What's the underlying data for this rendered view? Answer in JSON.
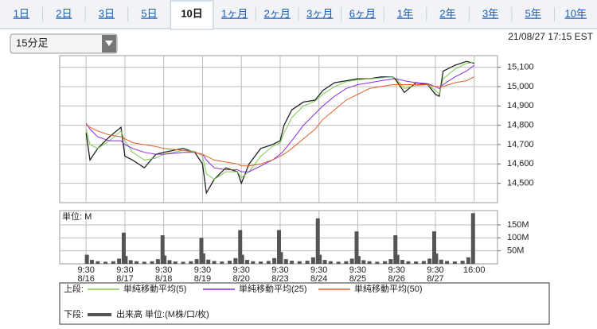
{
  "tabs": [
    "1日",
    "2日",
    "3日",
    "5日",
    "10日",
    "1ヶ月",
    "2ヶ月",
    "3ヶ月",
    "6ヶ月",
    "1年",
    "2年",
    "3年",
    "5年",
    "10年"
  ],
  "selected_tab": 4,
  "dropdown": "15分足",
  "timestamp": "21/08/27 17:15 EST",
  "chart_data": [
    {
      "type": "line",
      "x": [
        0,
        0.1,
        0.3,
        0.6,
        0.9,
        1.0,
        1.2,
        1.5,
        1.8,
        2.0,
        2.5,
        2.8,
        3.0,
        3.1,
        3.3,
        3.6,
        3.9,
        4.0,
        4.2,
        4.5,
        4.8,
        5.0,
        5.1,
        5.3,
        5.6,
        5.9,
        6.1,
        6.4,
        6.7,
        7.0,
        7.3,
        7.6,
        7.9,
        8.0,
        8.2,
        8.5,
        8.8,
        9.0,
        9.1,
        9.2,
        9.5,
        9.8,
        10
      ],
      "xlim": [
        -0.68,
        10.6
      ],
      "ylim": [
        14400,
        15160
      ],
      "yticks": [
        {
          "value": 14500,
          "label": "14,500"
        },
        {
          "value": 14600,
          "label": "14,600"
        },
        {
          "value": 14700,
          "label": "14,700"
        },
        {
          "value": 14800,
          "label": "14,800"
        },
        {
          "value": 14900,
          "label": "14,900"
        },
        {
          "value": 15000,
          "label": "15,000"
        },
        {
          "value": 15100,
          "label": "15,100"
        }
      ],
      "grid": true,
      "series": [
        {
          "color": "#222222",
          "values": [
            14760,
            14620,
            14680,
            14740,
            14790,
            14640,
            14620,
            14580,
            14650,
            14660,
            14680,
            14660,
            14600,
            14450,
            14520,
            14580,
            14560,
            14500,
            14600,
            14680,
            14700,
            14720,
            14800,
            14880,
            14920,
            14930,
            14980,
            15020,
            15030,
            15040,
            15040,
            15050,
            15050,
            15030,
            14970,
            15020,
            15010,
            14960,
            14950,
            15080,
            15110,
            15130,
            15120
          ]
        },
        {
          "name": "単純移動平均(5)",
          "color": "#7ec850",
          "values": [
            14780,
            14700,
            14680,
            14720,
            14770,
            14720,
            14660,
            14620,
            14630,
            14650,
            14670,
            14665,
            14640,
            14550,
            14520,
            14560,
            14560,
            14530,
            14560,
            14640,
            14690,
            14710,
            14760,
            14840,
            14900,
            14925,
            14960,
            15000,
            15025,
            15035,
            15040,
            15045,
            15050,
            15040,
            14990,
            15005,
            15010,
            14980,
            14960,
            15040,
            15090,
            15120,
            15125
          ]
        },
        {
          "name": "単純移動平均(25)",
          "color": "#8a2be2",
          "values": [
            14810,
            14780,
            14740,
            14720,
            14720,
            14700,
            14680,
            14660,
            14650,
            14650,
            14660,
            14660,
            14650,
            14620,
            14580,
            14570,
            14570,
            14560,
            14560,
            14590,
            14620,
            14650,
            14670,
            14720,
            14800,
            14860,
            14900,
            14950,
            14990,
            15010,
            15020,
            15030,
            15040,
            15040,
            15030,
            15020,
            15015,
            15000,
            14990,
            15010,
            15050,
            15080,
            15110
          ]
        },
        {
          "name": "単純移動平均(50)",
          "color": "#e0602a",
          "values": [
            14800,
            14790,
            14770,
            14750,
            14740,
            14730,
            14710,
            14700,
            14690,
            14680,
            14670,
            14660,
            14650,
            14640,
            14620,
            14610,
            14600,
            14590,
            14590,
            14600,
            14620,
            14640,
            14650,
            14680,
            14730,
            14780,
            14830,
            14880,
            14930,
            14960,
            14990,
            15000,
            15010,
            15010,
            15010,
            15010,
            15010,
            15000,
            15000,
            15000,
            15020,
            15030,
            15050
          ]
        }
      ],
      "legend_label": "上段:"
    },
    {
      "type": "bar",
      "unit_label": "単位: M",
      "xlim": [
        -0.68,
        10.6
      ],
      "ylim": [
        0,
        205
      ],
      "yticks": [
        {
          "value": 50,
          "label": "50M"
        },
        {
          "value": 100,
          "label": "100M"
        },
        {
          "value": 150,
          "label": "150M"
        }
      ],
      "xticks": [
        {
          "value": 0,
          "label": "9:30"
        },
        {
          "value": 1,
          "label": "9:30"
        },
        {
          "value": 2,
          "label": "9:30"
        },
        {
          "value": 3,
          "label": "9:30"
        },
        {
          "value": 4,
          "label": "9:30"
        },
        {
          "value": 5,
          "label": "9:30"
        },
        {
          "value": 6,
          "label": "9:30"
        },
        {
          "value": 7,
          "label": "9:30"
        },
        {
          "value": 8,
          "label": "9:30"
        },
        {
          "value": 9,
          "label": "9:30"
        },
        {
          "value": 10,
          "label": "16:00"
        }
      ],
      "xtick_dates": [
        "8/16",
        "8/17",
        "8/18",
        "8/19",
        "8/20",
        "8/23",
        "8/24",
        "8/25",
        "8/26",
        "8/27",
        null
      ],
      "x": [
        0.02,
        0.15,
        0.3,
        0.5,
        0.7,
        0.85,
        0.97,
        1.02,
        1.15,
        1.3,
        1.5,
        1.7,
        1.85,
        1.97,
        2.02,
        2.15,
        2.3,
        2.5,
        2.7,
        2.85,
        2.97,
        3.02,
        3.15,
        3.3,
        3.5,
        3.7,
        3.85,
        3.97,
        4.02,
        4.15,
        4.3,
        4.5,
        4.7,
        4.85,
        4.97,
        5.02,
        5.15,
        5.3,
        5.5,
        5.7,
        5.85,
        5.97,
        6.02,
        6.15,
        6.3,
        6.5,
        6.7,
        6.85,
        6.97,
        7.02,
        7.15,
        7.3,
        7.5,
        7.7,
        7.85,
        7.97,
        8.02,
        8.15,
        8.3,
        8.5,
        8.7,
        8.85,
        8.97,
        9.02,
        9.15,
        9.3,
        9.5,
        9.7,
        9.85,
        9.97
      ],
      "series": [
        {
          "name": "出来高 単位:(M株/口/枚)",
          "color": "#555555",
          "values": [
            35,
            15,
            10,
            8,
            10,
            20,
            120,
            30,
            14,
            10,
            8,
            10,
            18,
            110,
            32,
            14,
            9,
            8,
            10,
            18,
            100,
            40,
            16,
            11,
            9,
            12,
            22,
            130,
            35,
            15,
            10,
            9,
            11,
            22,
            130,
            45,
            18,
            12,
            10,
            12,
            25,
            175,
            35,
            15,
            10,
            8,
            10,
            20,
            125,
            30,
            14,
            10,
            8,
            10,
            18,
            110,
            35,
            15,
            10,
            9,
            11,
            20,
            125,
            40,
            16,
            11,
            9,
            12,
            25,
            195
          ]
        }
      ],
      "legend_label": "下段:"
    }
  ]
}
